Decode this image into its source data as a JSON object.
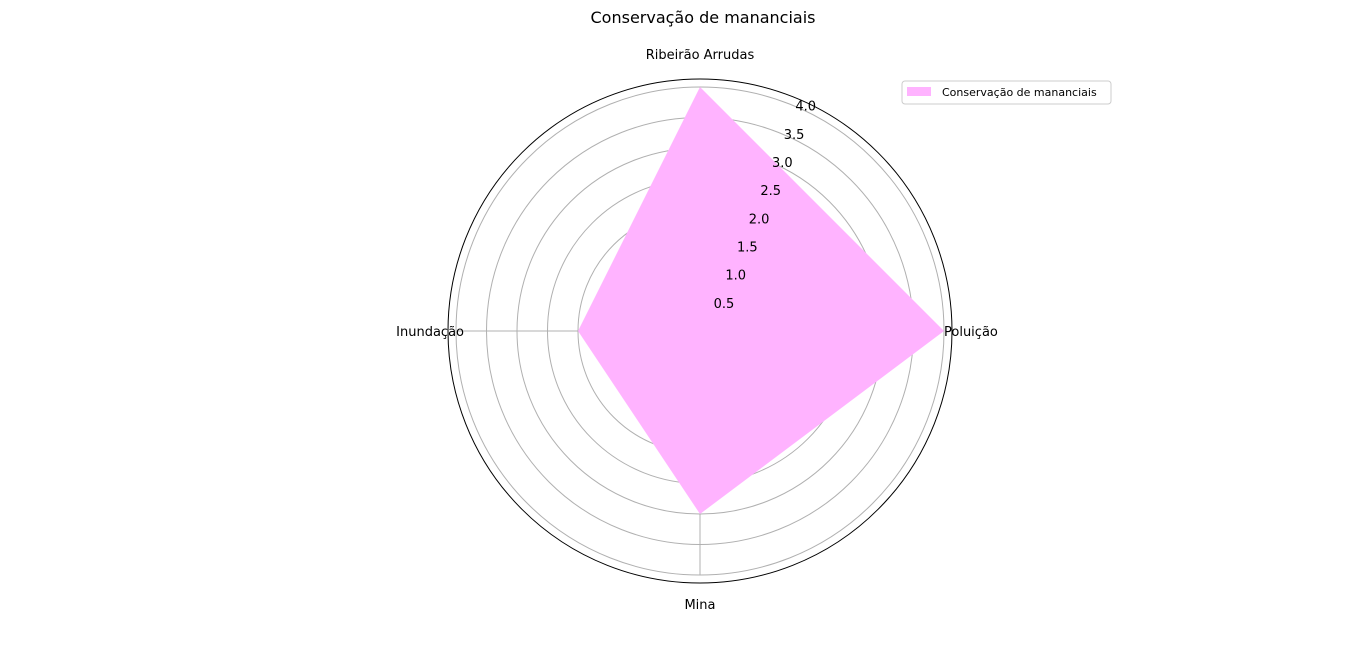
{
  "chart_data": {
    "type": "radar",
    "title": "Conservação de mananciais",
    "categories": [
      "Ribeirão Arrudas",
      "Poluição",
      "Mina",
      "Inundação"
    ],
    "series": [
      {
        "name": "Conservação de mananciais",
        "values": [
          4.0,
          4.0,
          3.0,
          2.0
        ],
        "color": "#ffb3ff"
      }
    ],
    "rlim": [
      0,
      4.0
    ],
    "rticks": [
      "0.5",
      "1.0",
      "1.5",
      "2.0",
      "2.5",
      "3.0",
      "3.5",
      "4.0"
    ],
    "grid": true,
    "legend_position": "top-right"
  }
}
